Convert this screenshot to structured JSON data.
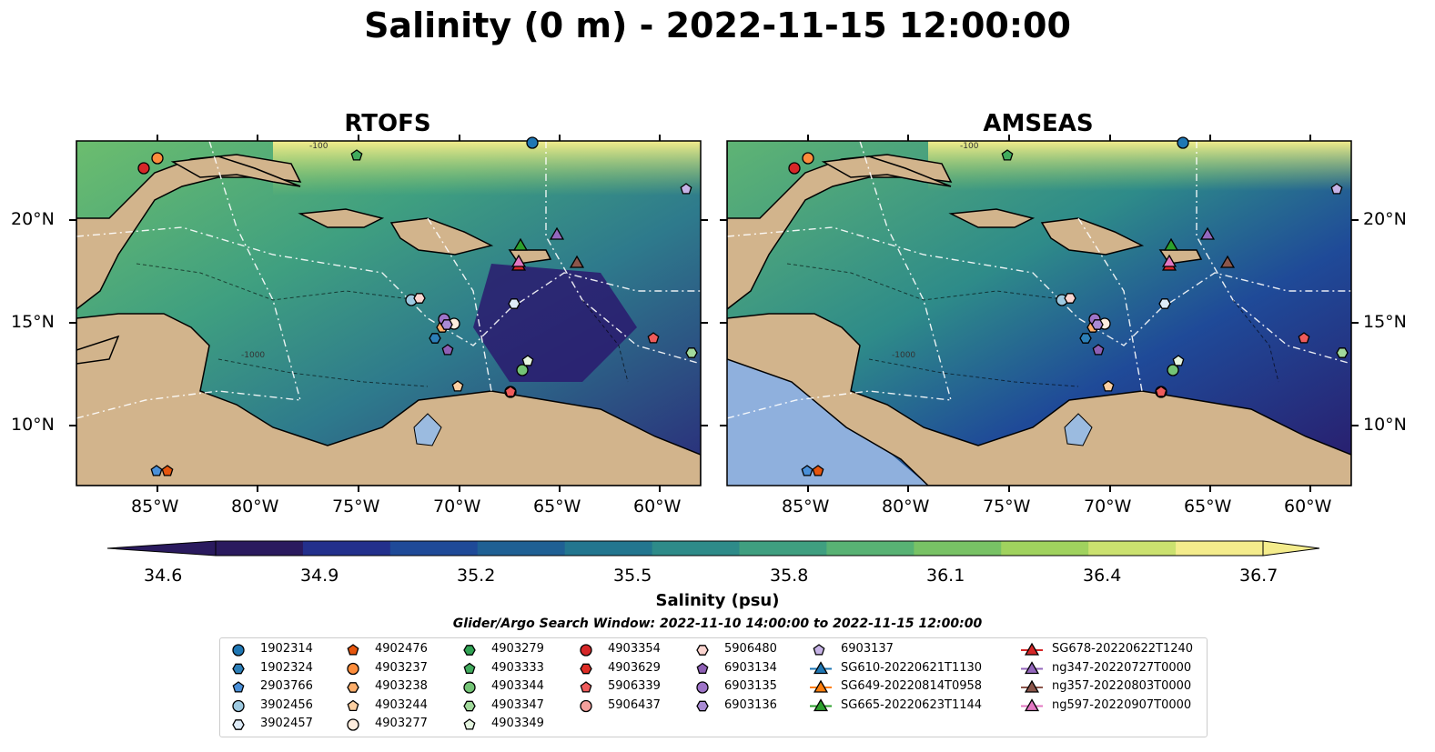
{
  "title": "Salinity (0 m) - 2022-11-15 12:00:00",
  "panels": [
    {
      "title": "RTOFS"
    },
    {
      "title": "AMSEAS"
    }
  ],
  "lon_ticks": [
    "85°W",
    "80°W",
    "75°W",
    "70°W",
    "65°W",
    "60°W"
  ],
  "lat_ticks": [
    "20°N",
    "15°N",
    "10°N"
  ],
  "contour_labels": [
    "-100",
    "-1000"
  ],
  "colorbar": {
    "label": "Salinity (psu)",
    "ticks": [
      "34.6",
      "34.9",
      "35.2",
      "35.5",
      "35.8",
      "36.1",
      "36.4",
      "36.7"
    ],
    "min": 34.6,
    "max": 36.7,
    "extend": "both",
    "colors": [
      "#2a1a5e",
      "#23308c",
      "#1f4a98",
      "#1f6094",
      "#23768f",
      "#2e8b89",
      "#3f9f80",
      "#58b274",
      "#78c265",
      "#a0d25e",
      "#cbe16f",
      "#f4ec8c"
    ]
  },
  "search_window": "Glider/Argo Search Window: 2022-11-10 14:00:00 to 2022-11-15 12:00:00",
  "colors": {
    "land": "#d2b48c",
    "lake": "#9bbbe0",
    "ocean_out": "#8fb0dd"
  },
  "legend": [
    {
      "label": "1902314",
      "marker": "circle",
      "color": "#1f77b4"
    },
    {
      "label": "1902324",
      "marker": "hexagon",
      "color": "#2c7fb8"
    },
    {
      "label": "2903766",
      "marker": "pentagon",
      "color": "#4a90d9"
    },
    {
      "label": "3902456",
      "marker": "circle",
      "color": "#9ecae1"
    },
    {
      "label": "3902457",
      "marker": "hexagon",
      "color": "#deebf7"
    },
    {
      "label": "4902476",
      "marker": "pentagon",
      "color": "#e6550d"
    },
    {
      "label": "4903237",
      "marker": "circle",
      "color": "#fd8d3c"
    },
    {
      "label": "4903238",
      "marker": "hexagon",
      "color": "#fdae6b"
    },
    {
      "label": "4903244",
      "marker": "pentagon",
      "color": "#fdd0a2"
    },
    {
      "label": "4903277",
      "marker": "circle",
      "color": "#feedde"
    },
    {
      "label": "4903279",
      "marker": "hexagon",
      "color": "#31a354"
    },
    {
      "label": "4903333",
      "marker": "pentagon",
      "color": "#41ab5d"
    },
    {
      "label": "4903344",
      "marker": "circle",
      "color": "#74c476"
    },
    {
      "label": "4903347",
      "marker": "hexagon",
      "color": "#a1d99b"
    },
    {
      "label": "4903349",
      "marker": "pentagon",
      "color": "#e5f5e0"
    },
    {
      "label": "4903354",
      "marker": "circle",
      "color": "#d62728"
    },
    {
      "label": "4903629",
      "marker": "hexagon",
      "color": "#de2d26"
    },
    {
      "label": "5906339",
      "marker": "pentagon",
      "color": "#ef5b5b"
    },
    {
      "label": "5906437",
      "marker": "circle",
      "color": "#f4a09c"
    },
    {
      "label": "5906480",
      "marker": "hexagon",
      "color": "#fcd5d0"
    },
    {
      "label": "6903134",
      "marker": "pentagon",
      "color": "#8e5fb5"
    },
    {
      "label": "6903135",
      "marker": "circle",
      "color": "#9e74c8"
    },
    {
      "label": "6903136",
      "marker": "hexagon",
      "color": "#a98bd4"
    },
    {
      "label": "6903137",
      "marker": "pentagon",
      "color": "#c6b3e6"
    },
    {
      "label": "SG610-20220621T1130",
      "marker": "triangle-line",
      "color": "#1f77b4"
    },
    {
      "label": "SG649-20220814T0958",
      "marker": "triangle-line",
      "color": "#ff7f0e"
    },
    {
      "label": "SG665-20220623T1144",
      "marker": "triangle-line",
      "color": "#2ca02c"
    },
    {
      "label": "SG678-20220622T1240",
      "marker": "triangle-line",
      "color": "#d62728"
    },
    {
      "label": "ng347-20220727T0000",
      "marker": "triangle-line",
      "color": "#9467bd"
    },
    {
      "label": "ng357-20220803T0000",
      "marker": "triangle-line",
      "color": "#8c564b"
    },
    {
      "label": "ng597-20220907T0000",
      "marker": "triangle-line",
      "color": "#e377c2"
    }
  ]
}
